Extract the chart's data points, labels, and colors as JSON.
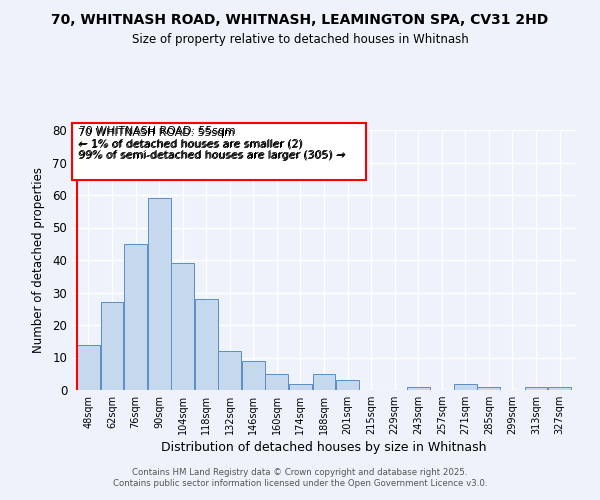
{
  "title1": "70, WHITNASH ROAD, WHITNASH, LEAMINGTON SPA, CV31 2HD",
  "title2": "Size of property relative to detached houses in Whitnash",
  "xlabel": "Distribution of detached houses by size in Whitnash",
  "ylabel": "Number of detached properties",
  "bar_labels": [
    "48sqm",
    "62sqm",
    "76sqm",
    "90sqm",
    "104sqm",
    "118sqm",
    "132sqm",
    "146sqm",
    "160sqm",
    "174sqm",
    "188sqm",
    "201sqm",
    "215sqm",
    "229sqm",
    "243sqm",
    "257sqm",
    "271sqm",
    "285sqm",
    "299sqm",
    "313sqm",
    "327sqm"
  ],
  "bar_values": [
    14,
    27,
    45,
    59,
    39,
    28,
    12,
    9,
    5,
    2,
    5,
    3,
    0,
    0,
    1,
    0,
    2,
    1,
    0,
    1,
    1
  ],
  "bar_color": "#c5d8ee",
  "bar_edge_color": "#5b8ec4",
  "annotation_title": "70 WHITNASH ROAD: 55sqm",
  "annotation_line1": "← 1% of detached houses are smaller (2)",
  "annotation_line2": "99% of semi-detached houses are larger (305) →",
  "ylim": [
    0,
    80
  ],
  "yticks": [
    0,
    10,
    20,
    30,
    40,
    50,
    60,
    70,
    80
  ],
  "bg_color": "#eef2fa",
  "grid_color": "#d8e4f0",
  "footer1": "Contains HM Land Registry data © Crown copyright and database right 2025.",
  "footer2": "Contains public sector information licensed under the Open Government Licence v3.0."
}
